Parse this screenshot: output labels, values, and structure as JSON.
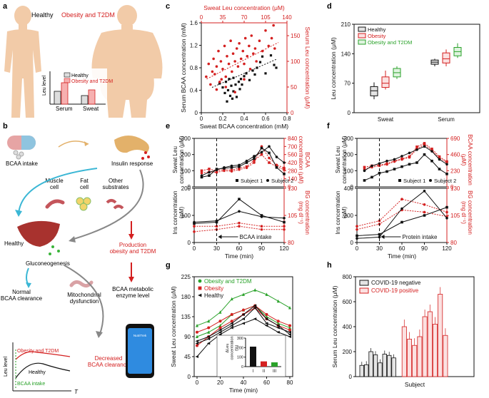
{
  "panels": {
    "a": "a",
    "b": "b",
    "c": "c",
    "d": "d",
    "e": "e",
    "f": "f",
    "g": "g",
    "h": "h"
  },
  "colors": {
    "red": "#d42020",
    "green": "#2aa22a",
    "black": "#111111",
    "skin": "#f2cba8",
    "skin_dark": "#e8b38a",
    "gray": "#888888"
  },
  "panel_a": {
    "healthy_label": "Healthy",
    "obesity_label": "Obesity and T2DM",
    "ylabel": "Leu level",
    "legend": [
      "Healthy",
      "Obesity and T2DM"
    ],
    "categories": [
      "Serum",
      "Sweat"
    ]
  },
  "panel_b": {
    "bcaa_intake": "BCAA intake",
    "insulin_response": "Insulin response",
    "muscle_cell": "Muscle\ncell",
    "fat_cell": "Fat\ncell",
    "other_substrates": "Other\nsubstrates",
    "healthy": "Healthy",
    "gluconeogenesis": "Gluconeogenesis",
    "production": "Production\nobesity and T2DM",
    "normal_clearance": "Normal\nBCAA clearance",
    "mito": "Mitochondrial\ndysfunction",
    "enzyme": "BCAA metabolic\nenzyme level",
    "decreased": "Decreased\nBCAA clearance",
    "mini_obesity": "Obesity and T2DM",
    "mini_healthy": "Healthy",
    "mini_intake": "BCAA intake",
    "mini_ylabel": "Leu level",
    "mini_xlabel": "T",
    "phone_label": "NutriTrek"
  },
  "chart_data": [
    {
      "id": "c",
      "type": "scatter",
      "xlabel": "Sweat BCAA concentration (mM)",
      "ylabel": "Serum BCAA concentration (mM)",
      "top_xlabel": "Sweat Leu concentration (μM)",
      "right_ylabel": "Serum Leu concentration (μM)",
      "xlim": [
        0,
        0.8
      ],
      "ylim": [
        0,
        1.6
      ],
      "xticks": [
        "0",
        "0.2",
        "0.4",
        "0.6",
        "0.8"
      ],
      "yticks": [
        "0",
        "0.4",
        "0.8",
        "1.2",
        "1.6"
      ],
      "top_xlim": [
        0,
        140
      ],
      "top_xticks": [
        "0",
        "35",
        "70",
        "105",
        "140"
      ],
      "right_ylim": [
        0,
        175
      ],
      "right_yticks": [
        "0",
        "50",
        "100",
        "150"
      ],
      "series": [
        {
          "name": "BCAA",
          "color": "black",
          "points": [
            [
              0.17,
              0.52
            ],
            [
              0.2,
              0.45
            ],
            [
              0.22,
              0.35
            ],
            [
              0.23,
              0.55
            ],
            [
              0.25,
              0.4
            ],
            [
              0.26,
              0.6
            ],
            [
              0.27,
              0.3
            ],
            [
              0.28,
              0.48
            ],
            [
              0.3,
              0.38
            ],
            [
              0.3,
              0.62
            ],
            [
              0.32,
              0.5
            ],
            [
              0.33,
              0.28
            ],
            [
              0.35,
              0.55
            ],
            [
              0.36,
              0.42
            ],
            [
              0.37,
              0.6
            ],
            [
              0.38,
              0.5
            ],
            [
              0.4,
              0.65
            ],
            [
              0.42,
              0.7
            ],
            [
              0.45,
              0.58
            ],
            [
              0.48,
              0.75
            ],
            [
              0.5,
              0.68
            ],
            [
              0.52,
              0.8
            ],
            [
              0.55,
              0.9
            ],
            [
              0.57,
              1.0
            ],
            [
              0.6,
              0.7
            ],
            [
              0.65,
              1.02
            ],
            [
              0.68,
              0.85
            ],
            [
              0.7,
              0.8
            ],
            [
              0.24,
              0.2
            ],
            [
              0.29,
              0.25
            ]
          ]
        },
        {
          "name": "Leu",
          "color": "red",
          "points": [
            [
              8,
              70
            ],
            [
              12,
              95
            ],
            [
              15,
              55
            ],
            [
              18,
              80
            ],
            [
              20,
              105
            ],
            [
              22,
              75
            ],
            [
              25,
              90
            ],
            [
              28,
              120
            ],
            [
              30,
              60
            ],
            [
              32,
              100
            ],
            [
              35,
              85
            ],
            [
              38,
              130
            ],
            [
              40,
              70
            ],
            [
              42,
              110
            ],
            [
              45,
              95
            ],
            [
              48,
              140
            ],
            [
              50,
              80
            ],
            [
              52,
              115
            ],
            [
              55,
              100
            ],
            [
              58,
              125
            ],
            [
              60,
              90
            ],
            [
              62,
              135
            ],
            [
              65,
              105
            ],
            [
              68,
              120
            ],
            [
              70,
              95
            ],
            [
              72,
              145
            ],
            [
              75,
              110
            ],
            [
              78,
              130
            ],
            [
              80,
              85
            ],
            [
              82,
              150
            ],
            [
              85,
              115
            ],
            [
              88,
              125
            ],
            [
              90,
              100
            ],
            [
              95,
              140
            ],
            [
              100,
              120
            ],
            [
              105,
              160
            ],
            [
              110,
              130
            ],
            [
              115,
              145
            ],
            [
              118,
              170
            ],
            [
              120,
              125
            ],
            [
              25,
              45
            ],
            [
              33,
              65
            ],
            [
              40,
              50
            ],
            [
              55,
              40
            ],
            [
              70,
              65
            ]
          ]
        }
      ],
      "fits": [
        {
          "color": "black",
          "from": [
            0.1,
            0.45
          ],
          "to": [
            0.7,
            0.95
          ]
        },
        {
          "color": "red",
          "from": [
            0.05,
            0.6
          ],
          "to": [
            0.72,
            1.25
          ]
        }
      ]
    },
    {
      "id": "d",
      "type": "box",
      "ylabel": "Leu concentration (μM)",
      "ylim": [
        0,
        210
      ],
      "yticks": [
        "0",
        "70",
        "140",
        "210"
      ],
      "categories": [
        "Sweat",
        "Serum"
      ],
      "legend": [
        "Healthy",
        "Obesity",
        "Obesity and T2DM"
      ],
      "boxes": [
        {
          "cat": 0,
          "series": 0,
          "min": 32,
          "q1": 40,
          "med": 52,
          "q3": 62,
          "max": 72
        },
        {
          "cat": 0,
          "series": 1,
          "min": 55,
          "q1": 60,
          "med": 70,
          "q3": 85,
          "max": 100
        },
        {
          "cat": 0,
          "series": 2,
          "min": 80,
          "q1": 85,
          "med": 95,
          "q3": 105,
          "max": 110
        },
        {
          "cat": 1,
          "series": 0,
          "min": 110,
          "q1": 115,
          "med": 120,
          "q3": 125,
          "max": 128
        },
        {
          "cat": 1,
          "series": 1,
          "min": 110,
          "q1": 118,
          "med": 128,
          "q3": 142,
          "max": 150
        },
        {
          "cat": 1,
          "series": 2,
          "min": 130,
          "q1": 135,
          "med": 145,
          "q3": 155,
          "max": 165
        }
      ]
    },
    {
      "id": "e",
      "type": "line",
      "top": {
        "ylabel": "Sweat Leu\nconcentration (μM)",
        "ylim": [
          0,
          300
        ],
        "yticks": [
          "0",
          "100",
          "200",
          "300"
        ],
        "right_ylabel": "BCAA\nconcentration (μM)",
        "right_ylim": [
          0,
          840
        ],
        "right_yticks": [
          "0",
          "140",
          "280",
          "420",
          "560",
          "700",
          "840"
        ],
        "legend": [
          "Subject 1",
          "Subject 2"
        ],
        "x": [
          10,
          20,
          30,
          40,
          50,
          60,
          70,
          80,
          90,
          100,
          110,
          120
        ],
        "s1": [
          60,
          70,
          110,
          115,
          120,
          125,
          150,
          175,
          240,
          210,
          120,
          80
        ],
        "s2": [
          70,
          90,
          105,
          120,
          130,
          135,
          160,
          190,
          215,
          250,
          185,
          150
        ],
        "r1": [
          280,
          310,
          280,
          300,
          290,
          330,
          350,
          460,
          560,
          420,
          350,
          300
        ],
        "r2": [
          240,
          260,
          250,
          280,
          270,
          300,
          330,
          420,
          700,
          500,
          380,
          330
        ]
      },
      "bottom": {
        "ylabel": "Ins concentration\n(pM)",
        "ylim": [
          0,
          200
        ],
        "yticks": [
          "0",
          "100",
          "200"
        ],
        "right_ylabel": "BG concentration\n(mg dl⁻¹)",
        "right_ylim": [
          80,
          130
        ],
        "right_yticks": [
          "80",
          "105",
          "130"
        ],
        "x": [
          0,
          30,
          60,
          90,
          120
        ],
        "ins1": [
          75,
          80,
          115,
          95,
          90
        ],
        "ins2": [
          70,
          75,
          160,
          100,
          75
        ],
        "bg1": [
          95,
          95,
          98,
          95,
          95
        ],
        "bg2": [
          90,
          92,
          95,
          92,
          92
        ]
      },
      "xlabel": "Time (min)",
      "xlim": [
        0,
        120
      ],
      "xticks": [
        "0",
        "30",
        "60",
        "90",
        "120"
      ],
      "annotation": "BCAA intake"
    },
    {
      "id": "f",
      "type": "line",
      "top": {
        "ylabel": "Sweat Leu\nconcentration (μM)",
        "ylim": [
          0,
          300
        ],
        "yticks": [
          "0",
          "100",
          "200",
          "300"
        ],
        "right_ylabel": "BCAA concentration\n(μM)",
        "right_ylim": [
          0,
          690
        ],
        "right_yticks": [
          "0",
          "230",
          "460",
          "690"
        ],
        "legend": [
          "Subject 1",
          "Subject 2"
        ],
        "x": [
          10,
          20,
          30,
          40,
          50,
          60,
          70,
          80,
          90,
          100,
          110,
          120
        ],
        "s1": [
          40,
          60,
          85,
          95,
          110,
          125,
          140,
          150,
          200,
          160,
          110,
          80
        ],
        "s2": [
          100,
          130,
          145,
          160,
          170,
          190,
          210,
          230,
          250,
          220,
          170,
          140
        ],
        "r1": [
          280,
          300,
          310,
          330,
          370,
          400,
          430,
          570,
          620,
          540,
          430,
          360
        ],
        "r2": [
          250,
          280,
          300,
          320,
          360,
          390,
          420,
          540,
          600,
          520,
          410,
          350
        ]
      },
      "bottom": {
        "ylabel": "Ins concentration\n(pM)",
        "ylim": [
          0,
          400
        ],
        "yticks": [
          "0",
          "200",
          "400"
        ],
        "right_ylabel": "BG concentration\n(mg dl⁻¹)",
        "right_ylim": [
          80,
          130
        ],
        "right_yticks": [
          "80",
          "105",
          "130"
        ],
        "x": [
          0,
          30,
          60,
          90,
          120
        ],
        "ins1": [
          30,
          40,
          250,
          380,
          180
        ],
        "ins2": [
          50,
          60,
          150,
          200,
          260
        ],
        "bg1": [
          95,
          100,
          120,
          115,
          108
        ],
        "bg2": [
          92,
          97,
          110,
          108,
          104
        ]
      },
      "xlabel": "Time (min)",
      "xlim": [
        0,
        120
      ],
      "xticks": [
        "0",
        "30",
        "60",
        "90",
        "120"
      ],
      "annotation": "Protein intake"
    },
    {
      "id": "g",
      "type": "line",
      "ylabel": "Sweat Leu concentration (μM)",
      "xlabel": "Time (min)",
      "xlim": [
        0,
        80
      ],
      "xticks": [
        "0",
        "20",
        "40",
        "60",
        "80"
      ],
      "ylim": [
        0,
        225
      ],
      "yticks": [
        "0",
        "45",
        "90",
        "135",
        "180",
        "225"
      ],
      "legend": [
        "Obesity and T2DM",
        "Obesity",
        "Healthy"
      ],
      "x": [
        0,
        10,
        20,
        30,
        40,
        50,
        60,
        70,
        80
      ],
      "series": [
        {
          "name": "Obesity and T2DM 1",
          "color": "green",
          "marker": "triangle",
          "values": [
            115,
            125,
            145,
            175,
            185,
            195,
            185,
            170,
            155
          ]
        },
        {
          "name": "Obesity and T2DM 2",
          "color": "green",
          "marker": "triangle",
          "values": [
            90,
            100,
            115,
            140,
            150,
            160,
            135,
            120,
            110
          ]
        },
        {
          "name": "Obesity 1",
          "color": "red",
          "marker": "circle",
          "values": [
            100,
            110,
            125,
            140,
            150,
            160,
            140,
            125,
            115
          ]
        },
        {
          "name": "Obesity 2",
          "color": "red",
          "marker": "circle",
          "values": [
            70,
            90,
            110,
            125,
            140,
            155,
            130,
            115,
            105
          ]
        },
        {
          "name": "Healthy 1",
          "color": "black",
          "marker": "triangle-left",
          "values": [
            45,
            75,
            95,
            110,
            120,
            130,
            115,
            100,
            90
          ]
        },
        {
          "name": "Healthy 2",
          "color": "black",
          "marker": "triangle-left",
          "values": [
            75,
            85,
            100,
            115,
            130,
            155,
            120,
            110,
            100
          ]
        },
        {
          "name": "Healthy 3",
          "color": "black",
          "marker": "triangle-left",
          "values": [
            80,
            90,
            105,
            120,
            140,
            160,
            130,
            115,
            95
          ]
        }
      ],
      "inset": {
        "ylabel": "ΔLeu\nconcentration\n(%)",
        "ylim": [
          0,
          300
        ],
        "yticks": [
          "0",
          "100",
          "200",
          "300"
        ],
        "categories": [
          "I",
          "II",
          "III"
        ],
        "values": [
          210,
          55,
          45
        ],
        "colors": [
          "black",
          "red",
          "green"
        ]
      }
    },
    {
      "id": "h",
      "type": "bar",
      "ylabel": "Serum Leu concentration (μM)",
      "xlabel": "Subject",
      "ylim": [
        0,
        800
      ],
      "yticks": [
        "0",
        "200",
        "400",
        "600",
        "800"
      ],
      "legend": [
        "COVID-19 negative",
        "COVID-19 positive"
      ],
      "negative": [
        90,
        95,
        200,
        175,
        110,
        180,
        170,
        150
      ],
      "positive": [
        400,
        300,
        250,
        320,
        480,
        520,
        420,
        660,
        330
      ]
    }
  ]
}
